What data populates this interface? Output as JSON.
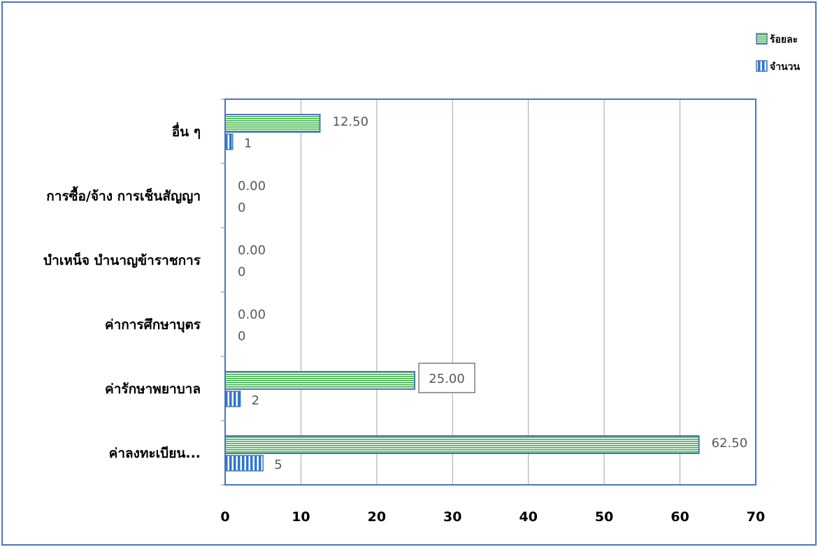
{
  "chart_data": {
    "type": "bar",
    "orientation": "horizontal",
    "categories": [
      "ค่าลงทะเบียน...",
      "ค่ารักษาพยาบาล",
      "ค่าการศึกษาบุตร",
      "บำเหน็จ บำนาญข้าราชการ",
      "การซื้อ/จ้าง การเช็นสัญญา",
      "อื่น ๆ"
    ],
    "series": [
      {
        "name": "ร้อยละ",
        "values": [
          62.5,
          25,
          0,
          0,
          0,
          12.5
        ],
        "labels": [
          "62.50",
          "25.00",
          "0.00",
          "0.00",
          "0.00",
          "12.50"
        ],
        "color": "#3fae49"
      },
      {
        "name": "จำนวน",
        "values": [
          5,
          2,
          0,
          0,
          0,
          1
        ],
        "labels": [
          "5",
          "2",
          "0",
          "0",
          "0",
          "1"
        ],
        "color": "#2e75c9"
      }
    ],
    "xlim": [
      0,
      70
    ],
    "xticks": [
      "0",
      "10",
      "20",
      "30",
      "40",
      "50",
      "60",
      "70"
    ],
    "grid": true,
    "legend": "top-right",
    "highlighted_label": "25.00"
  }
}
